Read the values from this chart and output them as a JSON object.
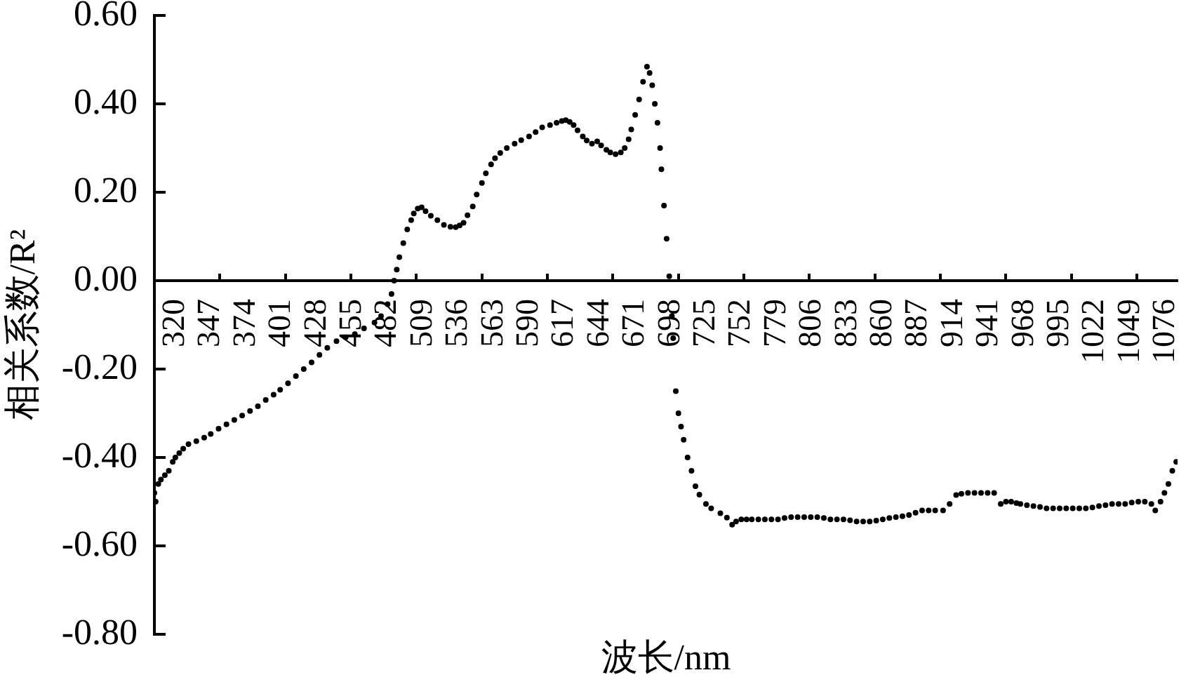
{
  "chart_data": {
    "type": "scatter",
    "xlabel": "波长/nm",
    "ylabel": "相关系数/R²",
    "x": [
      304,
      305,
      307,
      309,
      312,
      315,
      318,
      320,
      323,
      326,
      330,
      336,
      342,
      347,
      353,
      359,
      365,
      371,
      377,
      383,
      389,
      395,
      400,
      406,
      412,
      418,
      424,
      430,
      436,
      443,
      450,
      457,
      464,
      472,
      477,
      482,
      485,
      487,
      489,
      491,
      494,
      497,
      500,
      502,
      505,
      508,
      511,
      515,
      520,
      525,
      530,
      534,
      537,
      540,
      543,
      547,
      550,
      554,
      557,
      561,
      564,
      568,
      573,
      579,
      584,
      590,
      595,
      600,
      606,
      611,
      615,
      618,
      621,
      624,
      627,
      631,
      634,
      638,
      642,
      645,
      649,
      652,
      656,
      660,
      663,
      666,
      668,
      671,
      674,
      677,
      680,
      682,
      684,
      686,
      688,
      690,
      691,
      693,
      695,
      697,
      699,
      700,
      702,
      704,
      706,
      708,
      711,
      714,
      717,
      720,
      725,
      729,
      736,
      741,
      745,
      748,
      752,
      756,
      760,
      765,
      770,
      775,
      780,
      785,
      790,
      795,
      800,
      805,
      810,
      815,
      820,
      825,
      830,
      835,
      840,
      845,
      850,
      855,
      860,
      865,
      870,
      875,
      880,
      885,
      890,
      895,
      900,
      906,
      911,
      916,
      920,
      925,
      930,
      935,
      940,
      945,
      950,
      954,
      958,
      962,
      965,
      970,
      975,
      980,
      985,
      990,
      995,
      1000,
      1005,
      1010,
      1015,
      1020,
      1025,
      1030,
      1035,
      1040,
      1045,
      1050,
      1055,
      1060,
      1065,
      1068,
      1072,
      1075,
      1078,
      1081,
      1084
    ],
    "values": [
      -0.48,
      -0.5,
      -0.46,
      -0.45,
      -0.44,
      -0.43,
      -0.41,
      -0.4,
      -0.39,
      -0.38,
      -0.37,
      -0.363,
      -0.355,
      -0.347,
      -0.335,
      -0.325,
      -0.315,
      -0.305,
      -0.295,
      -0.284,
      -0.27,
      -0.258,
      -0.247,
      -0.232,
      -0.216,
      -0.2,
      -0.185,
      -0.168,
      -0.152,
      -0.137,
      -0.128,
      -0.121,
      -0.108,
      -0.095,
      -0.08,
      -0.053,
      -0.03,
      0.0,
      0.025,
      0.053,
      0.085,
      0.116,
      0.137,
      0.152,
      0.163,
      0.166,
      0.157,
      0.147,
      0.137,
      0.126,
      0.122,
      0.121,
      0.125,
      0.131,
      0.148,
      0.168,
      0.195,
      0.221,
      0.243,
      0.263,
      0.277,
      0.289,
      0.3,
      0.31,
      0.318,
      0.326,
      0.336,
      0.347,
      0.352,
      0.357,
      0.361,
      0.363,
      0.359,
      0.352,
      0.34,
      0.326,
      0.317,
      0.31,
      0.315,
      0.306,
      0.296,
      0.29,
      0.286,
      0.29,
      0.3,
      0.32,
      0.342,
      0.375,
      0.41,
      0.45,
      0.484,
      0.47,
      0.442,
      0.4,
      0.357,
      0.3,
      0.252,
      0.17,
      0.095,
      0.01,
      -0.08,
      -0.13,
      -0.25,
      -0.3,
      -0.33,
      -0.36,
      -0.4,
      -0.43,
      -0.465,
      -0.484,
      -0.505,
      -0.515,
      -0.526,
      -0.536,
      -0.552,
      -0.545,
      -0.54,
      -0.54,
      -0.54,
      -0.54,
      -0.54,
      -0.54,
      -0.54,
      -0.537,
      -0.535,
      -0.535,
      -0.535,
      -0.535,
      -0.535,
      -0.537,
      -0.54,
      -0.54,
      -0.54,
      -0.542,
      -0.545,
      -0.545,
      -0.545,
      -0.543,
      -0.54,
      -0.537,
      -0.535,
      -0.533,
      -0.53,
      -0.525,
      -0.52,
      -0.52,
      -0.52,
      -0.52,
      -0.505,
      -0.485,
      -0.482,
      -0.48,
      -0.48,
      -0.48,
      -0.48,
      -0.48,
      -0.505,
      -0.5,
      -0.5,
      -0.503,
      -0.505,
      -0.508,
      -0.51,
      -0.512,
      -0.515,
      -0.515,
      -0.515,
      -0.515,
      -0.515,
      -0.515,
      -0.515,
      -0.513,
      -0.51,
      -0.508,
      -0.505,
      -0.505,
      -0.505,
      -0.502,
      -0.5,
      -0.5,
      -0.505,
      -0.52,
      -0.5,
      -0.48,
      -0.46,
      -0.43,
      -0.41
    ],
    "color": "#000000",
    "marker": "circle",
    "xlim": [
      304,
      1085
    ],
    "xticks": [
      320,
      347,
      {
        "value": 354,
        "label": null
      },
      374,
      401,
      {
        "value": 404,
        "label": null
      },
      428,
      {
        "value": 454,
        "label": null
      },
      455,
      482,
      {
        "value": 504,
        "label": null
      },
      509,
      536,
      {
        "value": 554,
        "label": null
      },
      563,
      590,
      {
        "value": 604,
        "label": null
      },
      617,
      644,
      {
        "value": 654,
        "label": null
      },
      671,
      698,
      {
        "value": 704,
        "label": null
      },
      725,
      752,
      {
        "value": 754,
        "label": null
      },
      779,
      {
        "value": 804,
        "label": null
      },
      806,
      833,
      {
        "value": 854,
        "label": null
      },
      860,
      887,
      {
        "value": 904,
        "label": null
      },
      914,
      941,
      {
        "value": 954,
        "label": null
      },
      968,
      995,
      {
        "value": 1004,
        "label": null
      },
      1022,
      1049,
      {
        "value": 1054,
        "label": null
      },
      1076
    ],
    "ylim": [
      -0.8,
      0.6
    ],
    "yticks": [
      {
        "value": -0.8,
        "label": "-0.80"
      },
      {
        "value": -0.6,
        "label": "-0.60"
      },
      {
        "value": -0.4,
        "label": "-0.40"
      },
      {
        "value": -0.2,
        "label": "-0.20"
      },
      {
        "value": 0,
        "label": "0.00"
      },
      {
        "value": 0.2,
        "label": "0.20"
      },
      {
        "value": 0.4,
        "label": "0.40"
      },
      {
        "value": 0.6,
        "label": "0.60"
      }
    ]
  }
}
